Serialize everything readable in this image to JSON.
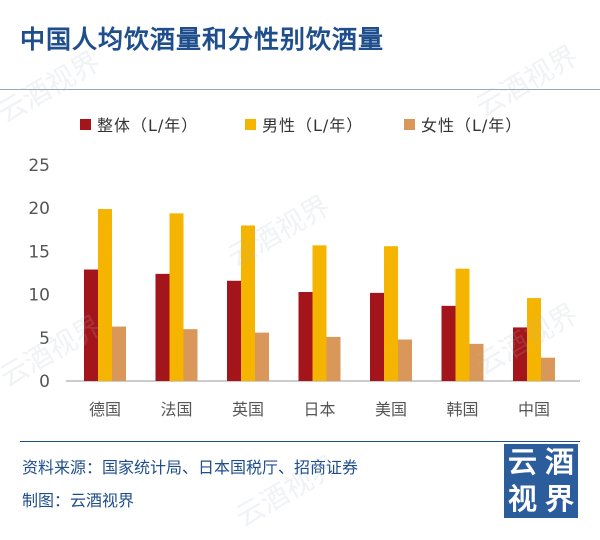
{
  "title": "中国人均饮酒量和分性别饮酒量",
  "legend": [
    {
      "label": "整体（L/年）",
      "color": "#a3151a"
    },
    {
      "label": "男性（L/年）",
      "color": "#f4b400"
    },
    {
      "label": "女性（L/年）",
      "color": "#d9985a"
    }
  ],
  "chart_data": {
    "type": "bar",
    "categories": [
      "德国",
      "法国",
      "英国",
      "日本",
      "美国",
      "韩国",
      "中国"
    ],
    "series": [
      {
        "name": "整体（L/年）",
        "values": [
          12.9,
          12.4,
          11.6,
          10.3,
          10.2,
          8.7,
          6.2
        ]
      },
      {
        "name": "男性（L/年）",
        "values": [
          19.9,
          19.4,
          18.0,
          15.7,
          15.6,
          13.0,
          9.6
        ]
      },
      {
        "name": "女性（L/年）",
        "values": [
          6.3,
          6.0,
          5.6,
          5.1,
          4.8,
          4.3,
          2.7
        ]
      }
    ],
    "yticks": [
      "0",
      "5",
      "10",
      "15",
      "20",
      "25"
    ],
    "ylim": [
      0,
      25
    ],
    "grid": false,
    "legend_position": "top"
  },
  "source": {
    "line1": "资料来源：国家统计局、日本国税厅、招商证券",
    "line2": "制图：云酒视界"
  },
  "logo": [
    "云",
    "酒",
    "视",
    "界"
  ],
  "watermark": "云酒视界"
}
